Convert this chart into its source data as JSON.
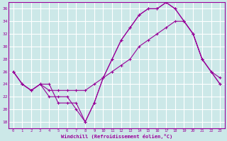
{
  "xlabel": "Windchill (Refroidissement éolien,°C)",
  "bg_color": "#cce8e8",
  "grid_color": "#ffffff",
  "line_color": "#990099",
  "xlim": [
    -0.5,
    23.5
  ],
  "ylim": [
    17,
    37
  ],
  "yticks": [
    18,
    20,
    22,
    24,
    26,
    28,
    30,
    32,
    34,
    36
  ],
  "xticks": [
    0,
    1,
    2,
    3,
    4,
    5,
    6,
    7,
    8,
    9,
    10,
    11,
    12,
    13,
    14,
    15,
    16,
    17,
    18,
    19,
    20,
    21,
    22,
    23
  ],
  "series1_x": [
    0,
    1,
    2,
    3,
    4,
    5,
    6,
    7,
    8,
    9,
    10,
    11,
    12,
    13,
    14,
    15,
    16,
    17,
    18,
    19,
    20,
    21,
    22,
    23
  ],
  "series1_y": [
    26,
    24,
    23,
    24,
    24,
    21,
    21,
    21,
    18,
    21,
    25,
    28,
    31,
    33,
    35,
    36,
    36,
    37,
    36,
    34,
    32,
    28,
    26,
    25
  ],
  "series2_x": [
    0,
    1,
    2,
    3,
    4,
    5,
    6,
    7,
    8,
    9,
    10,
    11,
    12,
    13,
    14,
    15,
    16,
    17,
    18,
    19,
    20,
    21,
    22,
    23
  ],
  "series2_y": [
    26,
    24,
    23,
    24,
    23,
    23,
    23,
    23,
    23,
    24,
    25,
    26,
    27,
    28,
    30,
    31,
    32,
    33,
    34,
    34,
    32,
    28,
    26,
    24
  ],
  "series3_x": [
    0,
    1,
    2,
    3,
    4,
    5,
    6,
    7,
    8,
    9,
    10,
    11,
    12,
    13,
    14,
    15,
    16,
    17,
    18,
    19,
    20,
    21,
    22,
    23
  ],
  "series3_y": [
    26,
    24,
    23,
    24,
    22,
    22,
    22,
    20,
    18,
    21,
    25,
    28,
    31,
    33,
    35,
    36,
    36,
    37,
    36,
    34,
    32,
    28,
    26,
    24
  ]
}
